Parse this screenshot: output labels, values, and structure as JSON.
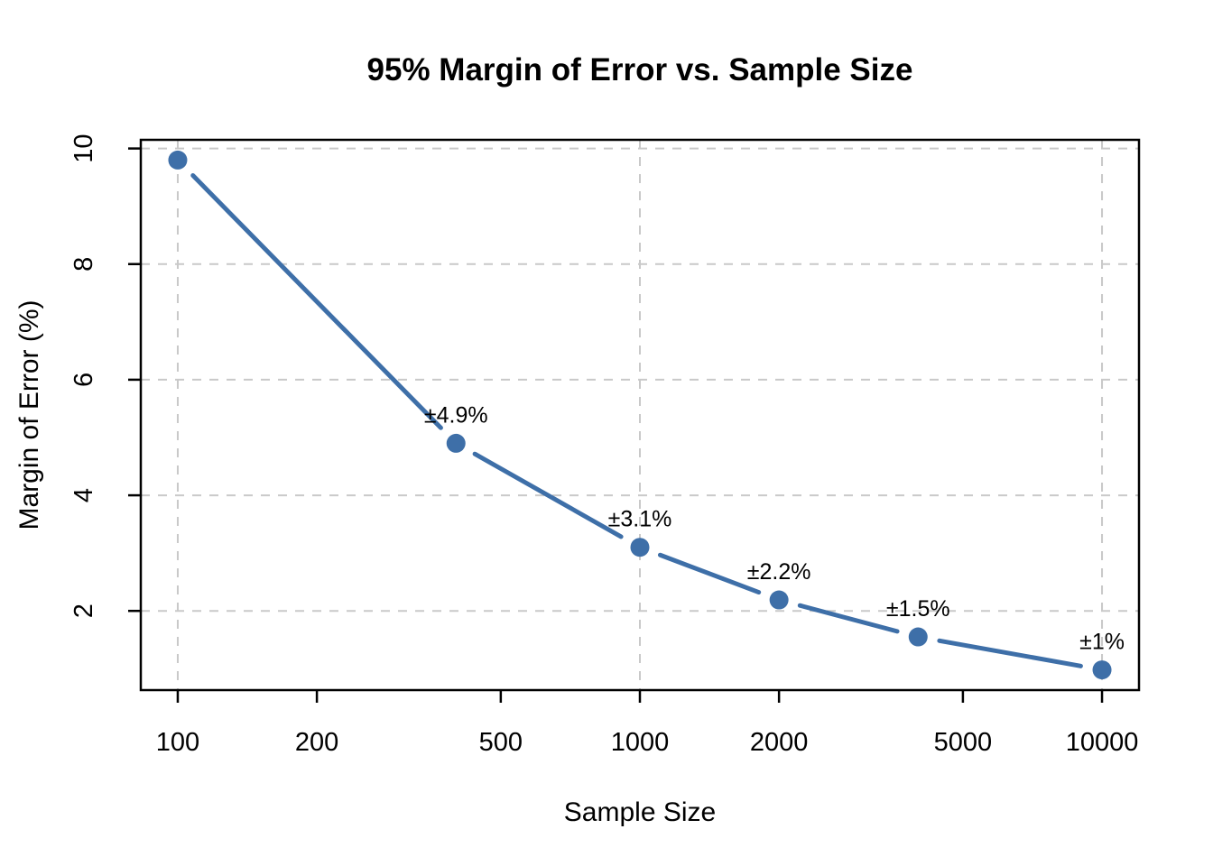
{
  "chart_data": {
    "type": "line",
    "title": "95% Margin of Error vs. Sample Size",
    "xlabel": "Sample Size",
    "ylabel": "Margin of Error (%)",
    "x_scale": "log10",
    "x": [
      100,
      400,
      1000,
      2000,
      4000,
      10000
    ],
    "y": [
      9.8,
      4.9,
      3.1,
      2.19,
      1.55,
      0.98
    ],
    "point_labels": [
      null,
      "±4.9%",
      "±3.1%",
      "±2.2%",
      "±1.5%",
      "±1%"
    ],
    "x_ticks": [
      100,
      200,
      500,
      1000,
      2000,
      5000,
      10000
    ],
    "x_tick_labels": [
      "100",
      "200",
      "500",
      "1000",
      "2000",
      "5000",
      "10000"
    ],
    "y_ticks": [
      2,
      4,
      6,
      8,
      10
    ],
    "y_tick_labels": [
      "2",
      "4",
      "6",
      "8",
      "10"
    ],
    "xlim_log10": [
      1.92,
      4.08
    ],
    "ylim": [
      0.63,
      10.15
    ],
    "x_gridlines": [
      100,
      1000,
      10000
    ],
    "y_gridlines": [
      2,
      4,
      6,
      8,
      10
    ],
    "grid_style": "dashed",
    "legend": "none",
    "marker": "filled-circle",
    "line_style": "segments-with-gaps",
    "colors": {
      "series": "#3E6FA8",
      "grid": "#C9C9C9",
      "frame": "#000000",
      "text": "#000000",
      "background": "#FFFFFF"
    }
  }
}
